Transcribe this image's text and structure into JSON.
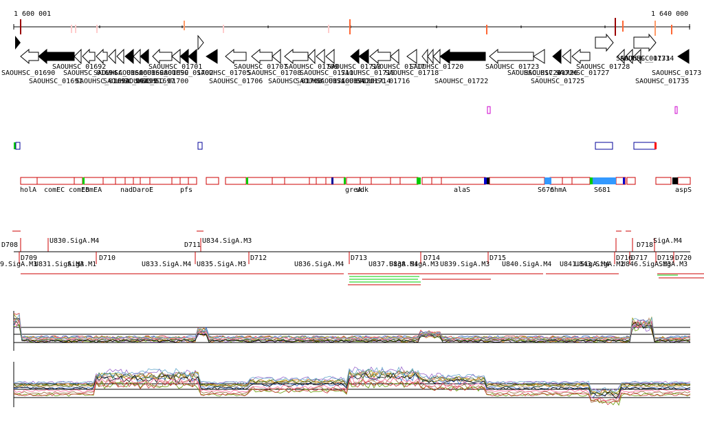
{
  "ruler": {
    "start_label": "1 600 001",
    "end_label": "1 640 000"
  },
  "genes": {
    "forward": [
      "SAOUHSC_01701",
      "SAOUHSC_01728",
      "SAOUHSC_01734"
    ],
    "labels_row1": [
      "SAOUHSC_01690",
      "SAOUHSC_01692",
      "SAOUHSC_01694",
      "SAOUHSC_01696",
      "SAOUHSC_01698",
      "SAOUHSC_01699",
      "SAOUHSC_01701",
      "SAOUHSC_01702",
      "SAOUHSC_01705",
      "SAOUHSC_01707",
      "SAOUHSC_01708",
      "SAOUHSC_01709",
      "SAOUHSC_01711",
      "SAOUHSC_01713",
      "SAOUHSC_01715",
      "SAOUHSC_01717",
      "SAOUHSC_01718",
      "SAOUHSC_01720",
      "SAOUHSC_01723",
      "SAOUHSC_01724",
      "SAOUHSC_01726",
      "SAOUHSC_01727",
      "SAOUHSC_01728",
      "SAOUHSC_01731",
      "SAOUHSC_01734",
      "SAOUHSC_0173"
    ],
    "labels_row2": [
      "SAOUHSC_01691",
      "SAOUHSC_01693",
      "SAOUHSC_01695",
      "SAOUHSC_01697",
      "SAOUHSC_01700",
      "SAOUHSC_01706",
      "SAOUHSC_01708",
      "SAOUHSC_01710",
      "SAOUHSC_01712",
      "SAOUHSC_01714",
      "SAOUHSC_01716",
      "SAOUHSC_01722",
      "SAOUHSC_01725",
      "SAOUHSC_01735"
    ]
  },
  "annotations": {
    "gene_names": [
      "holA",
      "comEC",
      "comEB",
      "comEA",
      "nadD",
      "aroE",
      "pfs",
      "greA",
      "udk",
      "alaS",
      "S676",
      "nhmA",
      "S681",
      "aspS"
    ]
  },
  "features": {
    "top_labels": [
      "D708",
      "U830.SigA.M4",
      "D711",
      "U834.SigA.M3",
      "D718",
      "SigA.M4"
    ],
    "row_labels": [
      "D709",
      "D710",
      "D712",
      "D713",
      "D714",
      "D715",
      "D716",
      "D717",
      "D719",
      "D720"
    ],
    "bottom_labels": [
      "9.SigA.M3",
      "U831.SigA.M3",
      "SigA.M1",
      "U833.SigA.M4",
      "U835.SigA.M3",
      "U836.SigA.M4",
      "U837.SigA.M4",
      "U838.SigA.M3",
      "U839.SigA.M3",
      "U840.SigA.M4",
      "U841.SigA.M4",
      "U843.SigA.M2",
      "U846.SigA.M3",
      "SigA.M3"
    ]
  }
}
